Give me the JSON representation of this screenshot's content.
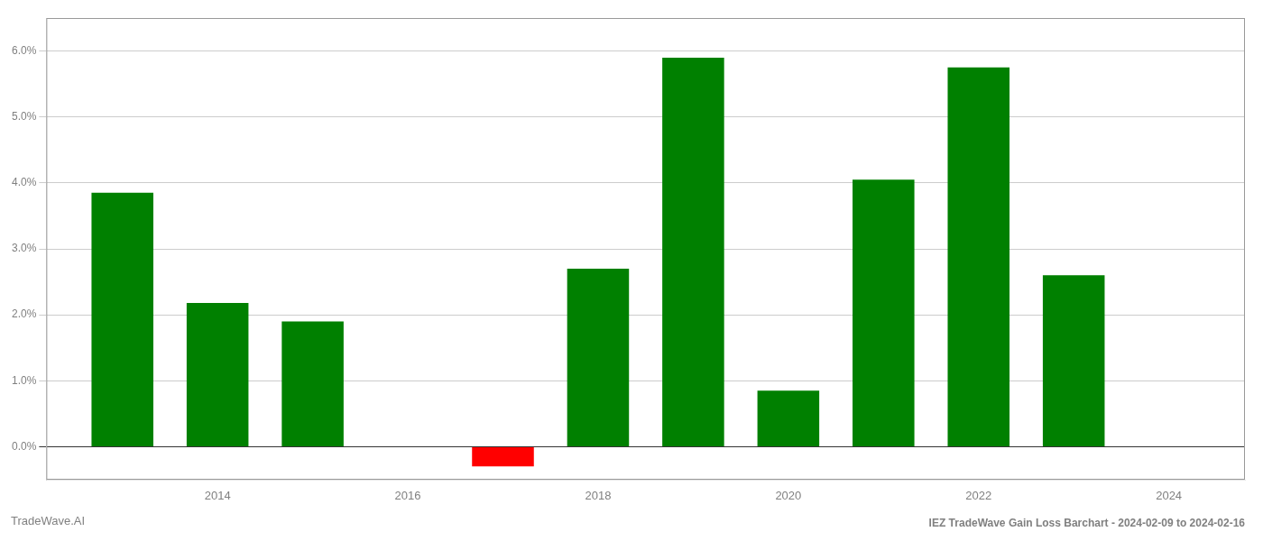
{
  "chart_data": {
    "type": "bar",
    "title": "IEZ TradeWave Gain Loss Barchart - 2024-02-09 to 2024-02-16",
    "annotations": [
      "TradeWave.AI"
    ],
    "x": [
      2013,
      2014,
      2015,
      2016,
      2017,
      2018,
      2019,
      2020,
      2021,
      2022,
      2023
    ],
    "values": [
      0.0385,
      0.0218,
      0.019,
      0.0,
      -0.003,
      0.027,
      0.059,
      0.0085,
      0.0405,
      0.0575,
      0.026
    ],
    "colors": [
      "#008000",
      "#008000",
      "#008000",
      "#008000",
      "#ff0000",
      "#008000",
      "#008000",
      "#008000",
      "#008000",
      "#008000",
      "#008000"
    ],
    "xlim": [
      2012.2,
      2024.8
    ],
    "xticks": [
      2014,
      2016,
      2018,
      2020,
      2022,
      2024
    ],
    "ylim": [
      -0.005,
      0.065
    ],
    "yticks": [
      {
        "value": 0.0,
        "label": "0.0%"
      },
      {
        "value": 0.01,
        "label": "1.0%"
      },
      {
        "value": 0.02,
        "label": "2.0%"
      },
      {
        "value": 0.03,
        "label": "3.0%"
      },
      {
        "value": 0.04,
        "label": "4.0%"
      },
      {
        "value": 0.05,
        "label": "5.0%"
      },
      {
        "value": 0.06,
        "label": "6.0%"
      }
    ],
    "grid": true
  }
}
